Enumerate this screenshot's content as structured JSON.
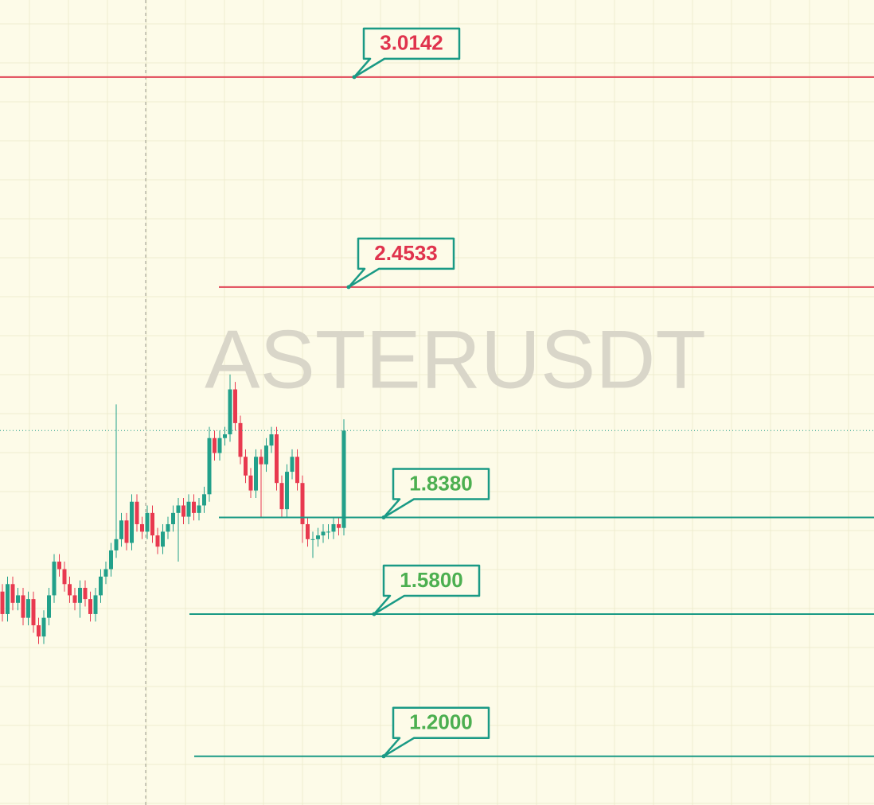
{
  "chart_data": {
    "type": "candlestick",
    "watermark": "ASTERUSDT",
    "ylim": [
      1.07,
      3.22
    ],
    "grid": true,
    "up_color": "#22a08a",
    "down_color": "#e8394f",
    "open": [
      1.64,
      1.58,
      1.66,
      1.61,
      1.63,
      1.57,
      1.62,
      1.55,
      1.52,
      1.57,
      1.63,
      1.72,
      1.7,
      1.66,
      1.63,
      1.61,
      1.65,
      1.62,
      1.58,
      1.63,
      1.68,
      1.7,
      1.75,
      1.78,
      1.83,
      1.77,
      1.88,
      1.82,
      1.8,
      1.85,
      1.79,
      1.76,
      1.8,
      1.82,
      1.85,
      1.87,
      1.84,
      1.88,
      1.85,
      1.87,
      1.9,
      2.05,
      2.01,
      2.05,
      2.06,
      2.18,
      2.09,
      2.0,
      1.95,
      1.91,
      2.0,
      1.98,
      2.03,
      2.06,
      1.93,
      1.86,
      1.96,
      2.0,
      1.93,
      1.82,
      1.78,
      1.78,
      1.79,
      1.8,
      1.8,
      1.82,
      1.81
    ],
    "high": [
      1.66,
      1.68,
      1.68,
      1.65,
      1.65,
      1.64,
      1.64,
      1.57,
      1.59,
      1.65,
      1.74,
      1.74,
      1.72,
      1.68,
      1.65,
      1.67,
      1.67,
      1.64,
      1.65,
      1.7,
      1.72,
      1.77,
      2.14,
      1.85,
      1.85,
      1.9,
      1.9,
      1.84,
      1.87,
      1.87,
      1.81,
      1.82,
      1.84,
      1.87,
      1.89,
      1.89,
      1.9,
      1.9,
      1.89,
      1.92,
      2.08,
      2.07,
      2.07,
      2.08,
      2.22,
      2.2,
      2.11,
      2.02,
      1.97,
      2.02,
      2.02,
      2.05,
      2.08,
      2.08,
      1.95,
      1.98,
      2.02,
      2.02,
      1.95,
      1.84,
      1.8,
      1.81,
      1.82,
      1.82,
      1.84,
      1.84,
      2.1
    ],
    "low": [
      1.56,
      1.56,
      1.59,
      1.59,
      1.55,
      1.55,
      1.53,
      1.5,
      1.5,
      1.55,
      1.61,
      1.68,
      1.64,
      1.61,
      1.59,
      1.57,
      1.6,
      1.56,
      1.56,
      1.61,
      1.66,
      1.68,
      1.73,
      1.76,
      1.75,
      1.75,
      1.8,
      1.78,
      1.78,
      1.77,
      1.74,
      1.74,
      1.78,
      1.8,
      1.72,
      1.82,
      1.82,
      1.83,
      1.83,
      1.85,
      1.88,
      1.99,
      1.99,
      2.03,
      2.04,
      2.07,
      1.98,
      1.93,
      1.89,
      1.89,
      1.84,
      1.96,
      2.01,
      1.91,
      1.84,
      1.84,
      1.94,
      1.91,
      1.77,
      1.76,
      1.73,
      1.76,
      1.77,
      1.78,
      1.78,
      1.79,
      1.79
    ],
    "close": [
      1.58,
      1.66,
      1.61,
      1.63,
      1.57,
      1.62,
      1.55,
      1.52,
      1.57,
      1.63,
      1.72,
      1.7,
      1.66,
      1.63,
      1.61,
      1.65,
      1.62,
      1.58,
      1.63,
      1.68,
      1.7,
      1.75,
      1.78,
      1.83,
      1.77,
      1.88,
      1.82,
      1.8,
      1.85,
      1.79,
      1.76,
      1.8,
      1.82,
      1.85,
      1.87,
      1.84,
      1.88,
      1.85,
      1.87,
      1.9,
      2.05,
      2.01,
      2.05,
      2.06,
      2.18,
      2.09,
      2.0,
      1.95,
      1.91,
      2.0,
      1.98,
      2.03,
      2.06,
      1.93,
      1.86,
      1.96,
      2.0,
      1.93,
      1.82,
      1.78,
      1.78,
      1.79,
      1.8,
      1.8,
      1.82,
      1.81,
      2.07
    ],
    "levels": [
      {
        "value": 3.0142,
        "label": "3.0142",
        "color": "#e04656",
        "text_color": "#e0334d"
      },
      {
        "value": 2.4533,
        "label": "2.4533",
        "color": "#e04656",
        "text_color": "#e0334d"
      },
      {
        "value": 1.838,
        "label": "1.8380",
        "color": "#1a9a85",
        "text_color": "#4caf50"
      },
      {
        "value": 1.58,
        "label": "1.5800",
        "color": "#1a9a85",
        "text_color": "#4caf50"
      },
      {
        "value": 1.2,
        "label": "1.2000",
        "color": "#1a9a85",
        "text_color": "#4caf50"
      }
    ]
  }
}
